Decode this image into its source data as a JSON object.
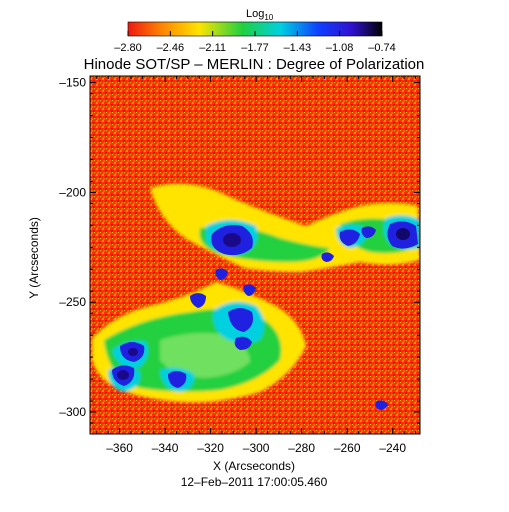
{
  "chart_data": {
    "type": "heatmap",
    "title": "Hinode SOT/SP – MERLIN : Degree of Polarization",
    "xlabel": "X (Arcseconds)",
    "ylabel": "Y (Arcseconds)",
    "xlim": [
      -373,
      -228
    ],
    "ylim": [
      -310,
      -147
    ],
    "x_ticks": [
      "–360",
      "–340",
      "–320",
      "–300",
      "–280",
      "–260",
      "–240"
    ],
    "x_tick_values": [
      -360,
      -340,
      -320,
      -300,
      -280,
      -260,
      -240
    ],
    "y_ticks": [
      "–150",
      "–200",
      "–250",
      "–300"
    ],
    "y_tick_values": [
      -150,
      -200,
      -250,
      -300
    ],
    "colorbar": {
      "label_base": "Log",
      "label_sub": "10",
      "ticks": [
        "–2.80",
        "–2.46",
        "–2.11",
        "–1.77",
        "–1.43",
        "–1.08",
        "–0.74"
      ],
      "min": -2.8,
      "max": -0.74,
      "colors": [
        "#ee1a10",
        "#ff8a00",
        "#ffe400",
        "#20d040",
        "#00d0e0",
        "#1040ff",
        "#3010d0",
        "#000000"
      ]
    },
    "grid": false,
    "timestamp": "12–Feb–2011  17:00:05.460"
  }
}
